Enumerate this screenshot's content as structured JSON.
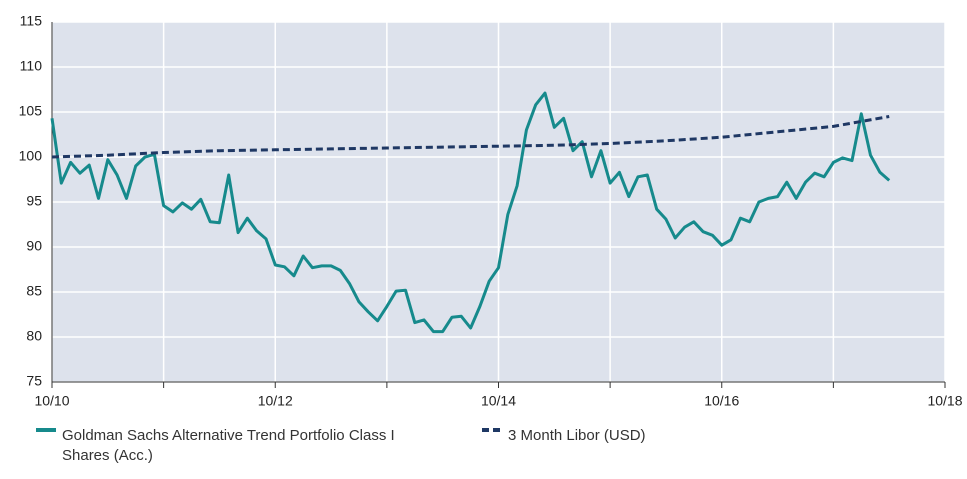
{
  "chart_data": {
    "type": "line",
    "xlim": [
      2010.75,
      2018.75
    ],
    "xticks": [
      {
        "value": 2010.75,
        "label": "10/10"
      },
      {
        "value": 2011.75,
        "label": null
      },
      {
        "value": 2012.75,
        "label": "10/12"
      },
      {
        "value": 2013.75,
        "label": null
      },
      {
        "value": 2014.75,
        "label": "10/14"
      },
      {
        "value": 2015.75,
        "label": null
      },
      {
        "value": 2016.75,
        "label": "10/16"
      },
      {
        "value": 2017.75,
        "label": null
      },
      {
        "value": 2018.75,
        "label": "10/18"
      }
    ],
    "ylim": [
      75,
      115
    ],
    "yticks": [
      75,
      80,
      85,
      90,
      95,
      100,
      105,
      110,
      115
    ],
    "grid": true,
    "legend": "bottom",
    "series": [
      {
        "name": "Goldman Sachs Alternative Trend Portfolio Class I Shares (Acc.)",
        "color": "#168a8c",
        "dashed": false,
        "x": [
          2010.75,
          2010.833,
          2010.917,
          2011,
          2011.083,
          2011.167,
          2011.25,
          2011.333,
          2011.417,
          2011.5,
          2011.583,
          2011.667,
          2011.75,
          2011.833,
          2011.917,
          2012,
          2012.083,
          2012.167,
          2012.25,
          2012.333,
          2012.417,
          2012.5,
          2012.583,
          2012.667,
          2012.75,
          2012.833,
          2012.917,
          2013,
          2013.083,
          2013.167,
          2013.25,
          2013.333,
          2013.417,
          2013.5,
          2013.583,
          2013.667,
          2013.75,
          2013.833,
          2013.917,
          2014,
          2014.083,
          2014.167,
          2014.25,
          2014.333,
          2014.417,
          2014.5,
          2014.583,
          2014.667,
          2014.75,
          2014.833,
          2014.917,
          2015,
          2015.083,
          2015.167,
          2015.25,
          2015.333,
          2015.417,
          2015.5,
          2015.583,
          2015.667,
          2015.75,
          2015.833,
          2015.917,
          2016,
          2016.083,
          2016.167,
          2016.25,
          2016.333,
          2016.417,
          2016.5,
          2016.583,
          2016.667,
          2016.75,
          2016.833,
          2016.917,
          2017,
          2017.083,
          2017.167,
          2017.25,
          2017.333,
          2017.417,
          2017.5,
          2017.583,
          2017.667,
          2017.75,
          2017.833,
          2017.917,
          2018,
          2018.083,
          2018.167,
          2018.25
        ],
        "values": [
          104.3,
          97.1,
          99.4,
          98.2,
          99.1,
          95.4,
          99.7,
          98,
          95.4,
          99,
          100,
          100.3,
          94.6,
          93.9,
          94.9,
          94.2,
          95.3,
          92.8,
          92.7,
          98,
          91.6,
          93.2,
          91.8,
          90.9,
          88,
          87.8,
          86.8,
          89,
          87.7,
          87.9,
          87.9,
          87.4,
          85.9,
          83.9,
          82.8,
          81.8,
          83.4,
          85.1,
          85.2,
          81.6,
          81.9,
          80.6,
          80.6,
          82.2,
          82.3,
          81,
          83.4,
          86.2,
          87.7,
          93.6,
          96.8,
          103,
          105.8,
          107.1,
          103.3,
          104.3,
          100.7,
          101.7,
          97.8,
          100.7,
          97.1,
          98.3,
          95.6,
          97.8,
          98,
          94.2,
          93.1,
          91,
          92.2,
          92.8,
          91.7,
          91.3,
          90.2,
          90.8,
          93.2,
          92.8,
          95,
          95.4,
          95.6,
          97.2,
          95.4,
          97.2,
          98.2,
          97.8,
          99.4,
          99.9,
          99.6,
          104.8,
          100.2,
          98.3,
          97.4
        ]
      },
      {
        "name": "3 Month Libor (USD)",
        "color": "#1f3864",
        "dashed": true,
        "x": [
          2010.75,
          2011.25,
          2011.75,
          2012.25,
          2012.75,
          2013.25,
          2013.75,
          2014.25,
          2014.75,
          2015.25,
          2015.75,
          2016.25,
          2016.75,
          2017.25,
          2017.75,
          2018.25
        ],
        "values": [
          100.0,
          100.2,
          100.5,
          100.7,
          100.8,
          100.9,
          101.0,
          101.1,
          101.2,
          101.3,
          101.5,
          101.8,
          102.2,
          102.8,
          103.4,
          104.5
        ]
      }
    ]
  }
}
